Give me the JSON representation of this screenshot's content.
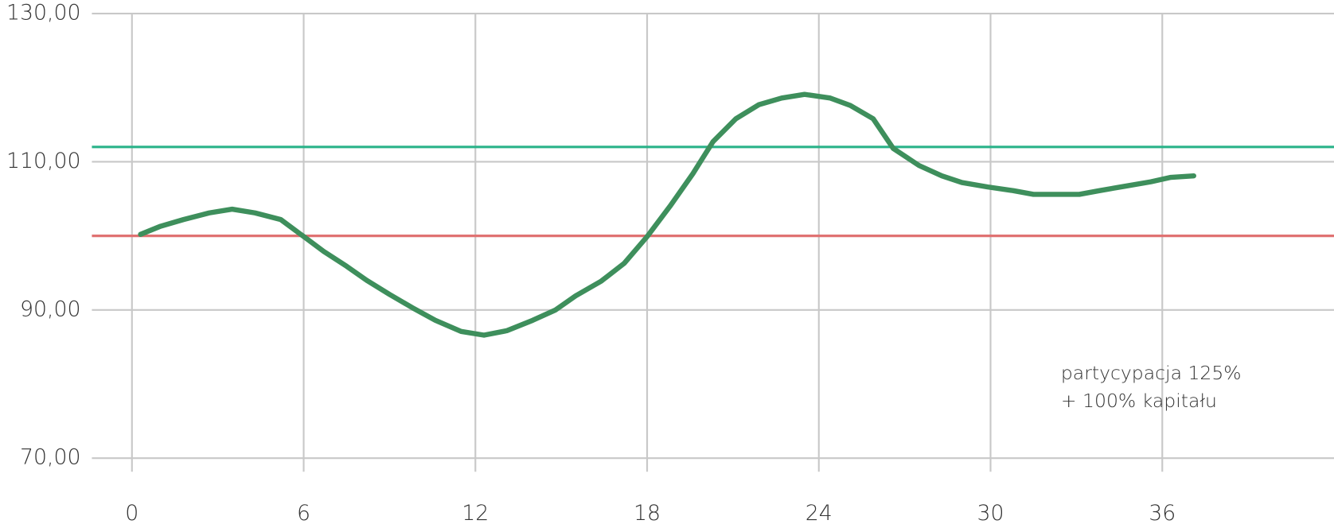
{
  "chart_data": {
    "type": "line",
    "x": [
      0.3,
      1.0,
      1.8,
      2.7,
      3.5,
      4.3,
      5.2,
      5.9,
      6.7,
      7.5,
      8.2,
      9.0,
      9.8,
      10.6,
      11.5,
      12.3,
      13.1,
      14.0,
      14.8,
      15.5,
      16.4,
      17.2,
      18.0,
      18.8,
      19.6,
      20.3,
      21.1,
      21.9,
      22.7,
      23.5,
      24.4,
      25.1,
      25.9,
      26.6,
      27.5,
      28.3,
      29.0,
      29.9,
      30.8,
      31.5,
      32.3,
      33.1,
      33.8,
      34.7,
      35.6,
      36.3,
      37.1
    ],
    "series": [
      {
        "color": "#3e8f5c",
        "values": [
          100.2,
          101.3,
          102.2,
          103.1,
          103.6,
          103.1,
          102.2,
          100.2,
          97.9,
          95.9,
          94.0,
          92.1,
          90.3,
          88.6,
          87.1,
          86.6,
          87.2,
          88.6,
          90.0,
          91.9,
          93.9,
          96.3,
          99.9,
          104.0,
          108.4,
          112.7,
          115.8,
          117.7,
          118.6,
          119.1,
          118.6,
          117.6,
          115.8,
          111.8,
          109.5,
          108.1,
          107.2,
          106.6,
          106.1,
          105.6,
          105.6,
          105.6,
          106.1,
          106.7,
          107.3,
          107.9,
          108.1
        ]
      }
    ],
    "hlines": [
      {
        "value": 112,
        "color": "#2bb38a"
      },
      {
        "value": 100,
        "color": "#e07272"
      }
    ],
    "annotation": [
      "partycypacja 125%",
      " + 100% kapitału"
    ],
    "xlim": [
      -1.4,
      42
    ],
    "xticks": [
      0,
      6,
      12,
      18,
      24,
      30,
      36
    ],
    "ylim": [
      70,
      130
    ],
    "yticks": [
      {
        "value": 70,
        "label": "70,00"
      },
      {
        "value": 90,
        "label": "90,00"
      },
      {
        "value": 110,
        "label": "110,00"
      },
      {
        "value": 130,
        "label": "130,00"
      }
    ],
    "grid": true
  }
}
